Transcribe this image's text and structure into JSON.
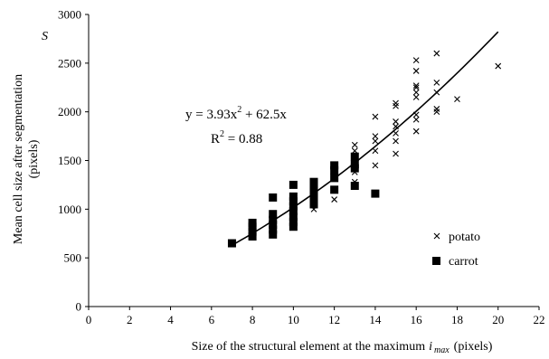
{
  "chart_data": {
    "type": "scatter",
    "xlabel_main": "Size of the structural element at the maximum",
    "xlabel_var": "i",
    "xlabel_sub": "max",
    "xlabel_unit": "(pixels)",
    "ylabel_line1": "Mean cell size after segmentation",
    "ylabel_line2": "(pixels)",
    "ylabel_symbol": "S",
    "xlim": [
      0,
      22
    ],
    "ylim": [
      0,
      3000
    ],
    "xticks": [
      0,
      2,
      4,
      6,
      8,
      10,
      12,
      14,
      16,
      18,
      20,
      22
    ],
    "yticks": [
      0,
      500,
      1000,
      1500,
      2000,
      2500,
      3000
    ],
    "grid": false,
    "legend_position": "bottom-right",
    "equation_text": "y = 3.93x",
    "equation_sup": "2",
    "equation_rest": " + 62.5x",
    "r2_label": "R",
    "r2_sup": "2",
    "r2_value": " = 0.88",
    "trendline": {
      "a": 3.93,
      "b": 62.5,
      "x_range": [
        7,
        20
      ],
      "color": "#000000"
    },
    "series": [
      {
        "name": "potato",
        "marker": "x",
        "color": "#000000",
        "points": [
          [
            11,
            1000
          ],
          [
            11,
            1100
          ],
          [
            11,
            1200
          ],
          [
            12,
            1100
          ],
          [
            12,
            1200
          ],
          [
            12,
            1350
          ],
          [
            13,
            1280
          ],
          [
            13,
            1380
          ],
          [
            13,
            1450
          ],
          [
            13,
            1520
          ],
          [
            13,
            1600
          ],
          [
            13,
            1660
          ],
          [
            14,
            1450
          ],
          [
            14,
            1600
          ],
          [
            14,
            1700
          ],
          [
            14,
            1750
          ],
          [
            14,
            1950
          ],
          [
            15,
            1570
          ],
          [
            15,
            1700
          ],
          [
            15,
            1780
          ],
          [
            15,
            1850
          ],
          [
            15,
            1900
          ],
          [
            15,
            2060
          ],
          [
            15,
            2090
          ],
          [
            16,
            1800
          ],
          [
            16,
            1920
          ],
          [
            16,
            1970
          ],
          [
            16,
            2150
          ],
          [
            16,
            2200
          ],
          [
            16,
            2250
          ],
          [
            16,
            2270
          ],
          [
            16,
            2420
          ],
          [
            16,
            2530
          ],
          [
            17,
            2000
          ],
          [
            17,
            2030
          ],
          [
            17,
            2200
          ],
          [
            17,
            2300
          ],
          [
            17,
            2600
          ],
          [
            18,
            2130
          ],
          [
            20,
            2470
          ]
        ]
      },
      {
        "name": "carrot",
        "marker": "square",
        "color": "#000000",
        "points": [
          [
            7,
            650
          ],
          [
            8,
            720
          ],
          [
            8,
            770
          ],
          [
            8,
            820
          ],
          [
            8,
            860
          ],
          [
            9,
            740
          ],
          [
            9,
            790
          ],
          [
            9,
            840
          ],
          [
            9,
            890
          ],
          [
            9,
            950
          ],
          [
            9,
            1120
          ],
          [
            10,
            820
          ],
          [
            10,
            870
          ],
          [
            10,
            920
          ],
          [
            10,
            980
          ],
          [
            10,
            1030
          ],
          [
            10,
            1080
          ],
          [
            10,
            1130
          ],
          [
            10,
            1250
          ],
          [
            11,
            1050
          ],
          [
            11,
            1130
          ],
          [
            11,
            1200
          ],
          [
            11,
            1280
          ],
          [
            12,
            1200
          ],
          [
            12,
            1320
          ],
          [
            12,
            1400
          ],
          [
            12,
            1450
          ],
          [
            13,
            1240
          ],
          [
            13,
            1420
          ],
          [
            13,
            1460
          ],
          [
            13,
            1540
          ],
          [
            14,
            1160
          ]
        ]
      }
    ]
  }
}
